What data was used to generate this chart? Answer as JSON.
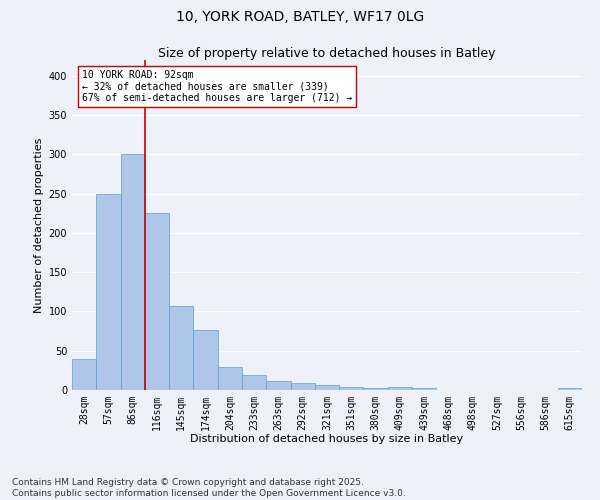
{
  "title_line1": "10, YORK ROAD, BATLEY, WF17 0LG",
  "title_line2": "Size of property relative to detached houses in Batley",
  "xlabel": "Distribution of detached houses by size in Batley",
  "ylabel": "Number of detached properties",
  "bins": [
    "28sqm",
    "57sqm",
    "86sqm",
    "116sqm",
    "145sqm",
    "174sqm",
    "204sqm",
    "233sqm",
    "263sqm",
    "292sqm",
    "321sqm",
    "351sqm",
    "380sqm",
    "409sqm",
    "439sqm",
    "468sqm",
    "498sqm",
    "527sqm",
    "556sqm",
    "586sqm",
    "615sqm"
  ],
  "values": [
    40,
    250,
    300,
    225,
    107,
    76,
    29,
    19,
    11,
    9,
    6,
    4,
    2,
    4,
    2,
    0,
    0,
    0,
    0,
    0,
    2
  ],
  "bar_color": "#aec6e8",
  "bar_edge_color": "#5a9fd4",
  "vline_color": "#cc0000",
  "vline_x_index": 2,
  "annotation_line1": "10 YORK ROAD: 92sqm",
  "annotation_line2": "← 32% of detached houses are smaller (339)",
  "annotation_line3": "67% of semi-detached houses are larger (712) →",
  "annotation_box_color": "#ffffff",
  "annotation_box_edge_color": "#cc0000",
  "ylim": [
    0,
    420
  ],
  "yticks": [
    0,
    50,
    100,
    150,
    200,
    250,
    300,
    350,
    400
  ],
  "footer_line1": "Contains HM Land Registry data © Crown copyright and database right 2025.",
  "footer_line2": "Contains public sector information licensed under the Open Government Licence v3.0.",
  "bg_color": "#eef1fa",
  "grid_color": "#ffffff",
  "title_fontsize": 10,
  "subtitle_fontsize": 9,
  "axis_label_fontsize": 8,
  "tick_fontsize": 7,
  "annotation_fontsize": 7,
  "footer_fontsize": 6.5
}
